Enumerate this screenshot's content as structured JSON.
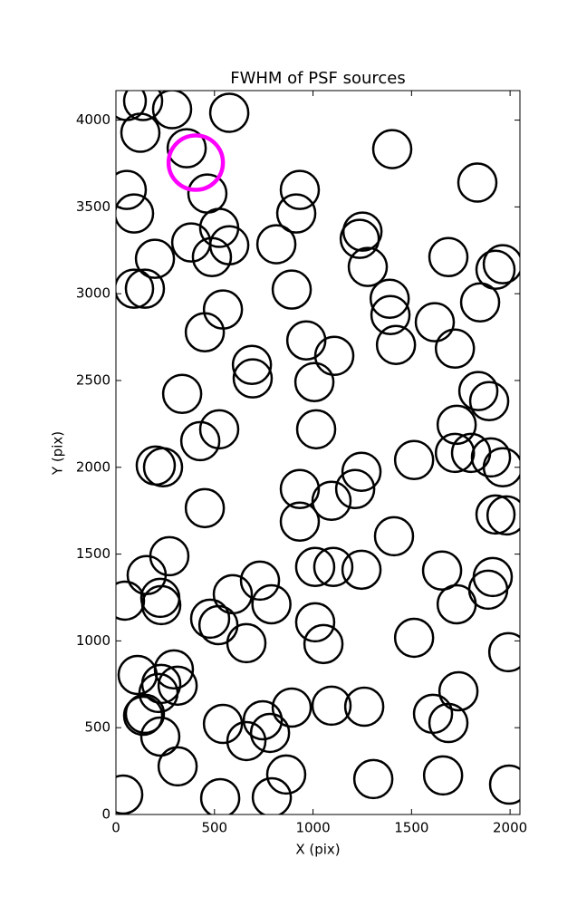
{
  "chart_data": {
    "type": "scatter",
    "title": "FWHM of PSF sources",
    "x_label": "X (pix)",
    "y_label": "Y (pix)",
    "xlim": [
      0,
      2050
    ],
    "ylim": [
      0,
      4170
    ],
    "xticks": [
      0,
      500,
      1000,
      1500,
      2000
    ],
    "yticks": [
      0,
      500,
      1000,
      1500,
      2000,
      2500,
      3000,
      3500,
      4000
    ],
    "series": [
      {
        "color": "#000000",
        "x": [
          55,
          138,
          285,
          575,
          124,
          359,
          1402,
          55,
          464,
          92,
          933,
          915,
          1834,
          524,
          1251,
          1237,
          382,
          487,
          575,
          814,
          198,
          1687,
          1278,
          1926,
          1963,
          92,
          147,
          892,
          1389,
          1848,
          1393,
          543,
          1618,
          451,
          966,
          1421,
          1720,
          1108,
          690,
          694,
          1007,
          1839,
          1894,
          336,
          524,
          1016,
          1729,
          428,
          1720,
          1802,
          1903,
          1963,
          1513,
          202,
          239,
          1246,
          1214,
          933,
          1094,
          451,
          933,
          1926,
          1982,
          1411,
          271,
          156,
          1011,
          1103,
          1246,
          1655,
          1912,
          1889,
          731,
          593,
          789,
          1729,
          225,
          230,
          46,
          478,
          520,
          1011,
          1053,
          662,
          1513,
          1991,
          294,
          110,
          230,
          216,
          313,
          1738,
          138,
          147,
          892,
          1094,
          1260,
          1609,
          1687,
          745,
          543,
          782,
          225,
          662,
          313,
          864,
          1306,
          1660,
          1995,
          37,
          529,
          791
        ],
        "y": [
          4110,
          4110,
          4063,
          4042,
          3927,
          3838,
          3833,
          3598,
          3577,
          3462,
          3598,
          3462,
          3640,
          3379,
          3358,
          3316,
          3295,
          3211,
          3279,
          3285,
          3201,
          3211,
          3154,
          3138,
          3170,
          3029,
          3029,
          3024,
          2971,
          2950,
          2877,
          2909,
          2836,
          2778,
          2731,
          2705,
          2684,
          2642,
          2590,
          2512,
          2491,
          2439,
          2381,
          2423,
          2219,
          2219,
          2245,
          2151,
          2083,
          2083,
          2057,
          2000,
          2042,
          2010,
          2000,
          1974,
          1875,
          1875,
          1807,
          1765,
          1687,
          1728,
          1723,
          1603,
          1488,
          1379,
          1426,
          1426,
          1410,
          1405,
          1368,
          1295,
          1347,
          1269,
          1211,
          1211,
          1248,
          1206,
          1232,
          1128,
          1091,
          1107,
          982,
          987,
          1018,
          935,
          836,
          804,
          752,
          700,
          742,
          710,
          569,
          580,
          616,
          627,
          621,
          580,
          527,
          543,
          522,
          470,
          449,
          423,
          277,
          230,
          204,
          225,
          172,
          115,
          94,
          99
        ]
      },
      {
        "color": "#ff00ff",
        "x": [
          405
        ],
        "y": [
          3755
        ]
      }
    ]
  }
}
